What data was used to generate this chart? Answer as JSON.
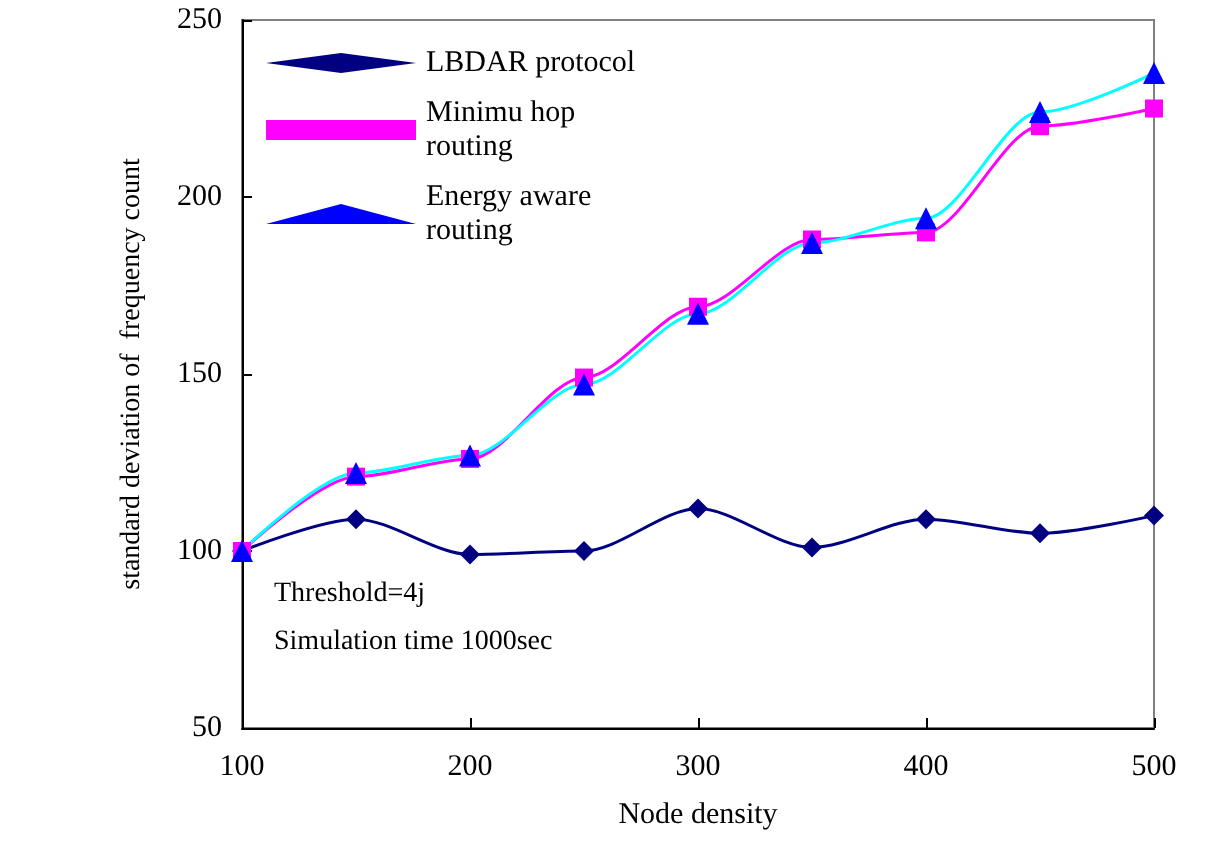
{
  "chart_data": {
    "type": "line",
    "xlabel": "Node density",
    "ylabel": "standard deviation of  frequency count",
    "x": [
      100,
      150,
      200,
      250,
      300,
      350,
      400,
      450,
      500
    ],
    "series": [
      {
        "name": "LBDAR protocol",
        "color": "#000080",
        "marker": "diamond",
        "values": [
          100,
          109,
          99,
          100,
          112,
          101,
          109,
          105,
          110
        ]
      },
      {
        "name": "Minimu hop routing",
        "color": "#ff00ff",
        "marker": "square",
        "values": [
          100,
          121,
          126,
          149,
          169,
          188,
          190,
          220,
          225
        ]
      },
      {
        "name": "Energy aware routing",
        "color": "#00ffff",
        "marker": "triangle",
        "values": [
          100,
          122,
          127,
          147,
          167,
          187,
          194,
          224,
          235
        ]
      }
    ],
    "xlim": [
      100,
      500
    ],
    "xticks": [
      100,
      200,
      300,
      400,
      500
    ],
    "ylim": [
      50,
      250
    ],
    "yticks": [
      50,
      100,
      150,
      200,
      250
    ],
    "grid": false,
    "legend": "top left",
    "line_style": "solid",
    "annotations": [
      "Threshold=4j",
      "Simulation time 1000sec"
    ]
  }
}
